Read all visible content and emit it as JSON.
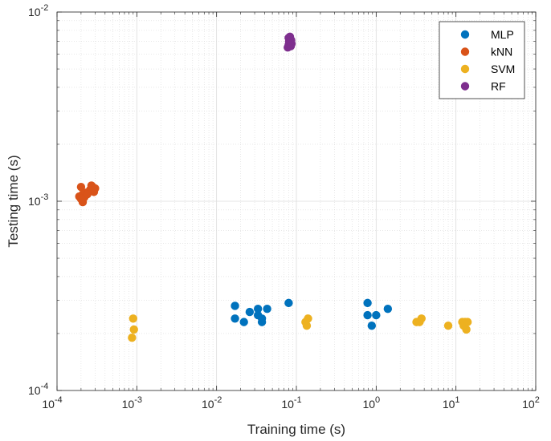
{
  "chart_data": {
    "type": "scatter",
    "title": "",
    "xlabel": "Training time (s)",
    "ylabel": "Testing time (s)",
    "x_scale": "log",
    "y_scale": "log",
    "xlim": [
      0.0001,
      100
    ],
    "ylim": [
      0.0001,
      0.01
    ],
    "grid": true,
    "legend_position": "top-right",
    "x_ticks": [
      {
        "value": 0.0001,
        "base": "10",
        "exp": "-4"
      },
      {
        "value": 0.001,
        "base": "10",
        "exp": "-3"
      },
      {
        "value": 0.01,
        "base": "10",
        "exp": "-2"
      },
      {
        "value": 0.1,
        "base": "10",
        "exp": "-1"
      },
      {
        "value": 1,
        "base": "10",
        "exp": "0"
      },
      {
        "value": 10,
        "base": "10",
        "exp": "1"
      },
      {
        "value": 100,
        "base": "10",
        "exp": "2"
      }
    ],
    "y_ticks": [
      {
        "value": 0.0001,
        "base": "10",
        "exp": "-4"
      },
      {
        "value": 0.001,
        "base": "10",
        "exp": "-3"
      },
      {
        "value": 0.01,
        "base": "10",
        "exp": "-2"
      }
    ],
    "series": [
      {
        "name": "MLP",
        "color": "#0072BD",
        "points": [
          [
            0.017,
            0.00028
          ],
          [
            0.017,
            0.00024
          ],
          [
            0.022,
            0.00023
          ],
          [
            0.026,
            0.00026
          ],
          [
            0.033,
            0.00027
          ],
          [
            0.033,
            0.00025
          ],
          [
            0.037,
            0.00024
          ],
          [
            0.037,
            0.00023
          ],
          [
            0.043,
            0.00027
          ],
          [
            0.08,
            0.00029
          ],
          [
            0.78,
            0.00029
          ],
          [
            0.78,
            0.00025
          ],
          [
            0.88,
            0.00022
          ],
          [
            1.0,
            0.00025
          ],
          [
            1.4,
            0.00027
          ]
        ]
      },
      {
        "name": "kNN",
        "color": "#D95319",
        "points": [
          [
            0.00019,
            0.00106
          ],
          [
            0.0002,
            0.00119
          ],
          [
            0.00021,
            0.00099
          ],
          [
            0.00021,
            0.00109
          ],
          [
            0.00022,
            0.00105
          ],
          [
            0.00023,
            0.00111
          ],
          [
            0.00025,
            0.00112
          ],
          [
            0.00026,
            0.00115
          ],
          [
            0.00027,
            0.00121
          ],
          [
            0.00028,
            0.00119
          ],
          [
            0.00029,
            0.00112
          ],
          [
            0.0003,
            0.00117
          ],
          [
            0.00024,
            0.00109
          ],
          [
            0.0002,
            0.00103
          ]
        ]
      },
      {
        "name": "SVM",
        "color": "#EDB120",
        "points": [
          [
            0.00087,
            0.00019
          ],
          [
            0.0009,
            0.00024
          ],
          [
            0.00092,
            0.00021
          ],
          [
            0.13,
            0.00023
          ],
          [
            0.135,
            0.00022
          ],
          [
            0.14,
            0.00024
          ],
          [
            3.2,
            0.00023
          ],
          [
            3.5,
            0.00023
          ],
          [
            3.7,
            0.00024
          ],
          [
            8.0,
            0.00022
          ],
          [
            12.0,
            0.00023
          ],
          [
            12.5,
            0.00022
          ],
          [
            13.0,
            0.00023
          ],
          [
            13.5,
            0.00021
          ],
          [
            14.0,
            0.00023
          ]
        ]
      },
      {
        "name": "RF",
        "color": "#7E2F8E",
        "points": [
          [
            0.078,
            0.0065
          ],
          [
            0.08,
            0.0067
          ],
          [
            0.081,
            0.007
          ],
          [
            0.082,
            0.0072
          ],
          [
            0.083,
            0.0074
          ],
          [
            0.084,
            0.0069
          ],
          [
            0.085,
            0.0066
          ],
          [
            0.086,
            0.0071
          ],
          [
            0.087,
            0.0068
          ],
          [
            0.08,
            0.0073
          ]
        ]
      }
    ]
  }
}
